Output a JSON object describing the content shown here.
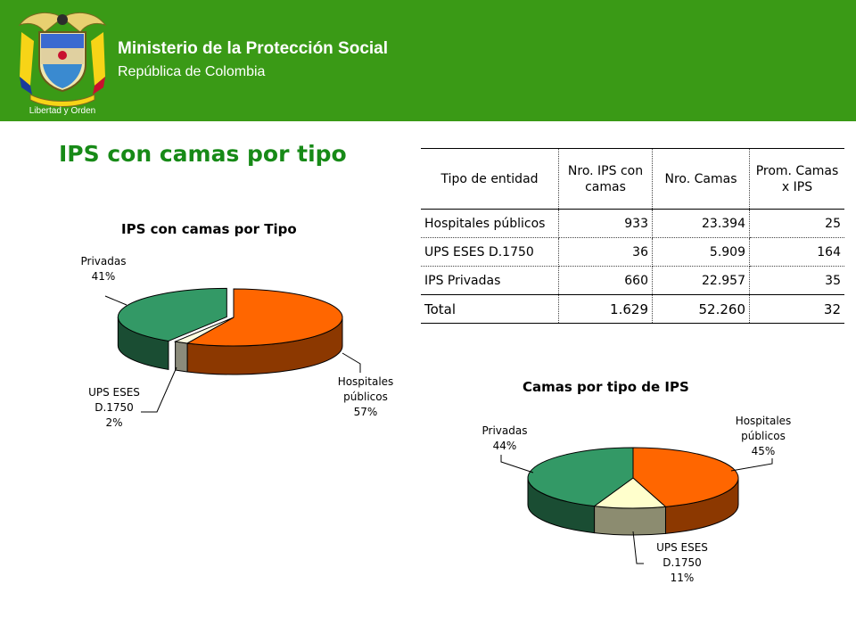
{
  "header": {
    "title": "Ministerio de la Protección Social",
    "subtitle": "República de Colombia",
    "motto": "Libertad y Orden",
    "background_color": "#3a9a16"
  },
  "page_title": "IPS con camas por tipo",
  "table": {
    "headers": [
      "Tipo de entidad",
      "Nro. IPS con camas",
      "Nro. Camas",
      "Prom. Camas x IPS"
    ],
    "rows": [
      [
        "Hospitales públicos",
        "933",
        "23.394",
        "25"
      ],
      [
        "UPS ESES D.1750",
        "36",
        "5.909",
        "164"
      ],
      [
        "IPS Privadas",
        "660",
        "22.957",
        "35"
      ],
      [
        "Total",
        "1.629",
        "52.260",
        "32"
      ]
    ]
  },
  "chart_data": [
    {
      "type": "pie",
      "title": "IPS con camas por Tipo",
      "slices": [
        {
          "label": "Hospitales públicos",
          "value": 57,
          "display": "57%",
          "color": "#ff6600"
        },
        {
          "label": "UPS ESES D.1750",
          "value": 2,
          "display": "2%",
          "color": "#fdfde0"
        },
        {
          "label": "Privadas",
          "value": 41,
          "display": "41%",
          "color": "#339966"
        }
      ]
    },
    {
      "type": "pie",
      "title": "Camas por tipo de IPS",
      "slices": [
        {
          "label": "Hospitales públicos",
          "value": 45,
          "display": "45%",
          "color": "#ff6600"
        },
        {
          "label": "UPS ESES D.1750",
          "value": 11,
          "display": "11%",
          "color": "#ffffcc"
        },
        {
          "label": "Privadas",
          "value": 44,
          "display": "44%",
          "color": "#339966"
        }
      ]
    }
  ]
}
